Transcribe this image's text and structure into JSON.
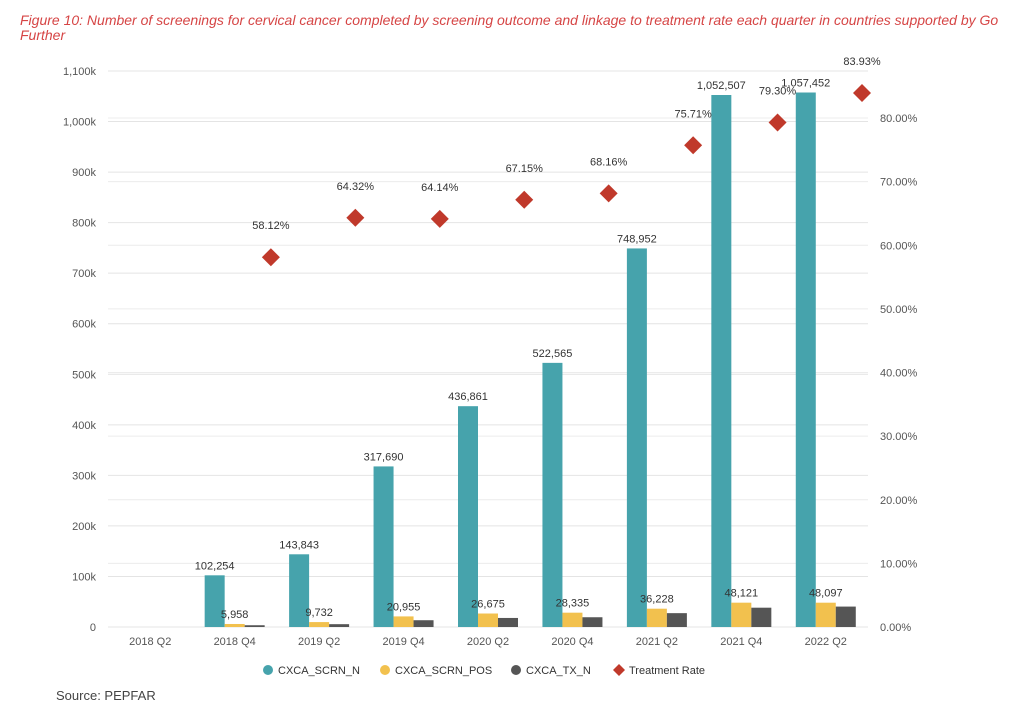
{
  "figure": {
    "title": "Figure 10: Number of screenings for cervical cancer completed by screening outcome and linkage to treatment rate each quarter in countries supported by Go Further",
    "source": "Source: PEPFAR"
  },
  "chart_data": {
    "type": "bar",
    "title": "Figure 10: Number of screenings for cervical cancer completed by screening outcome and linkage to treatment rate each quarter in countries supported by Go Further",
    "categories": [
      "2018 Q2",
      "2018 Q4",
      "2019 Q2",
      "2019 Q4",
      "2020 Q2",
      "2020 Q4",
      "2021 Q2",
      "2021 Q4",
      "2022 Q2"
    ],
    "series": [
      {
        "name": "CXCA_SCRN_N",
        "type": "bar",
        "axis": "left",
        "color": "#46a3ac",
        "values": [
          0,
          102254,
          143843,
          317690,
          436861,
          522565,
          748952,
          1052507,
          1057452
        ],
        "labels": [
          "",
          "102,254",
          "143,843",
          "317,690",
          "436,861",
          "522,565",
          "748,952",
          "1,052,507",
          "1,057,452"
        ]
      },
      {
        "name": "CXCA_SCRN_POS",
        "type": "bar",
        "axis": "left",
        "color": "#f2c14e",
        "values": [
          0,
          5958,
          9732,
          20955,
          26675,
          28335,
          36228,
          48121,
          48097
        ],
        "labels": [
          "",
          "5,958",
          "9,732",
          "20,955",
          "26,675",
          "28,335",
          "36,228",
          "48,121",
          "48,097"
        ]
      },
      {
        "name": "CXCA_TX_N",
        "type": "bar",
        "axis": "left",
        "color": "#555555",
        "values": [
          0,
          3500,
          5600,
          13400,
          17900,
          19300,
          27400,
          38200,
          40400
        ],
        "labels": [
          "",
          "",
          "",
          "",
          "",
          "",
          "",
          "",
          ""
        ]
      },
      {
        "name": "Treatment Rate",
        "type": "scatter",
        "axis": "right",
        "color": "#c0392b",
        "values": [
          null,
          58.12,
          64.32,
          64.14,
          67.15,
          68.16,
          75.71,
          79.3,
          83.93
        ],
        "labels": [
          "",
          "58.12%",
          "64.32%",
          "64.14%",
          "67.15%",
          "68.16%",
          "75.71%",
          "79.30%",
          "83.93%"
        ]
      }
    ],
    "y_left": {
      "min": 0,
      "max": 1100000,
      "ticks": [
        0,
        100000,
        200000,
        300000,
        400000,
        500000,
        600000,
        700000,
        800000,
        900000,
        1000000,
        1100000
      ],
      "tick_labels": [
        "0",
        "100k",
        "200k",
        "300k",
        "400k",
        "500k",
        "600k",
        "700k",
        "800k",
        "900k",
        "1,000k",
        "1,100k"
      ]
    },
    "y_right": {
      "min": 0,
      "max": 80,
      "ticks": [
        0,
        10,
        20,
        30,
        40,
        50,
        60,
        70,
        80
      ],
      "tick_labels": [
        "0.00%",
        "10.00%",
        "20.00%",
        "30.00%",
        "40.00%",
        "50.00%",
        "60.00%",
        "70.00%",
        "80.00%"
      ]
    },
    "grid": true,
    "legend_position": "bottom-center"
  }
}
